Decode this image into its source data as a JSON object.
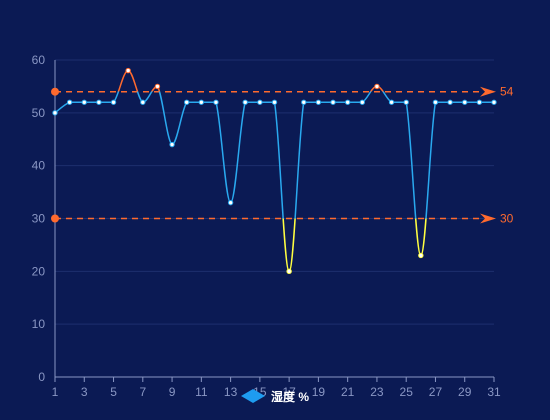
{
  "chart_data": {
    "type": "line",
    "title": "",
    "xlabel": "",
    "ylabel": "",
    "x": [
      1,
      2,
      3,
      4,
      5,
      6,
      7,
      8,
      9,
      10,
      11,
      12,
      13,
      14,
      15,
      16,
      17,
      18,
      19,
      20,
      21,
      22,
      23,
      24,
      25,
      26,
      27,
      28,
      29,
      30,
      31
    ],
    "x_tick_labels": [
      "1",
      "3",
      "5",
      "7",
      "9",
      "11",
      "13",
      "15",
      "17",
      "19",
      "21",
      "23",
      "25",
      "27",
      "29",
      "31"
    ],
    "ylim": [
      0,
      60
    ],
    "y_ticks": [
      0,
      10,
      20,
      30,
      40,
      50,
      60
    ],
    "series": [
      {
        "name": "湿度 %",
        "values": [
          50,
          52,
          52,
          52,
          52,
          58,
          52,
          55,
          44,
          52,
          52,
          52,
          33,
          52,
          52,
          52,
          20,
          52,
          52,
          52,
          52,
          52,
          55,
          52,
          52,
          23,
          52,
          52,
          52,
          52,
          52
        ]
      }
    ],
    "thresholds": [
      {
        "value": 54,
        "label": "54",
        "color": "#ff6a2e"
      },
      {
        "value": 30,
        "label": "30",
        "color": "#ff6a2e"
      }
    ],
    "grid": true,
    "legend_position": "bottom",
    "colors": {
      "normal": "#29a9ef",
      "above_upper": "#ff6a2e",
      "below_lower": "#ffff40",
      "axis": "#8a97c4",
      "grid": "#1e2f6e",
      "legend_icon": "#1e9cf0",
      "point_fill": "#ffffff"
    }
  },
  "legend": {
    "label": "湿度 %"
  }
}
